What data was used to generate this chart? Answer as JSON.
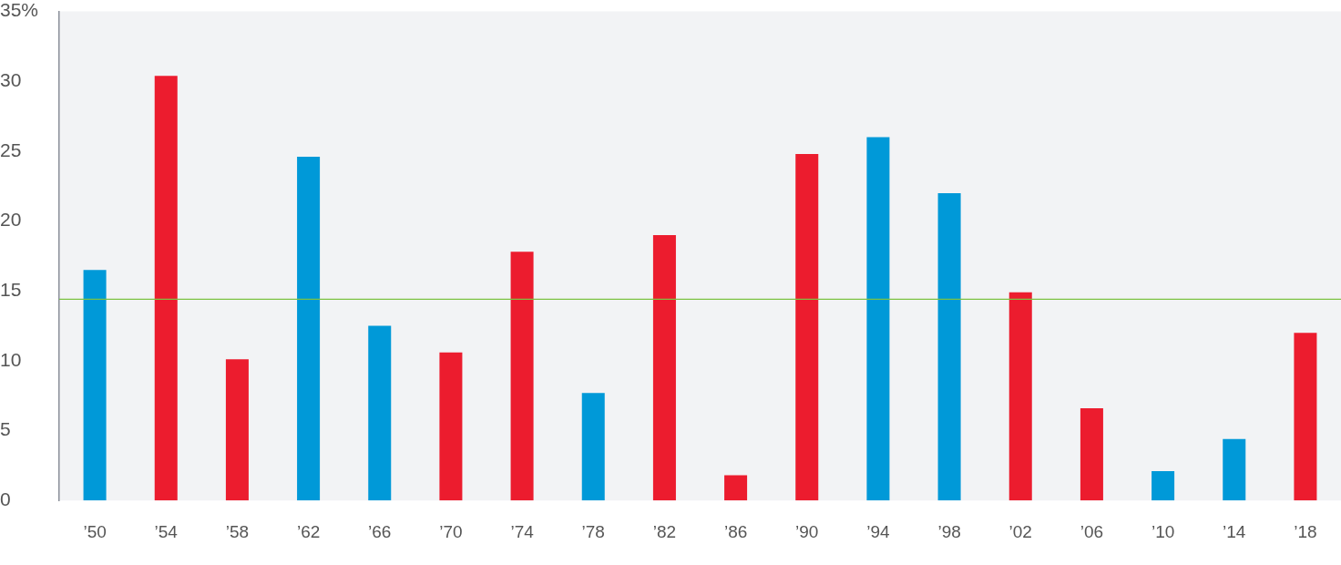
{
  "chart_data": {
    "type": "bar",
    "categories": [
      "’50",
      "’54",
      "’58",
      "’62",
      "’66",
      "’70",
      "’74",
      "’78",
      "’82",
      "’86",
      "’90",
      "’94",
      "’98",
      "’02",
      "’06",
      "’10",
      "’14",
      "’18"
    ],
    "values": [
      16.5,
      30.4,
      10.1,
      24.6,
      12.5,
      10.6,
      17.8,
      7.7,
      19.0,
      1.8,
      24.8,
      26.0,
      22.0,
      14.9,
      6.6,
      2.1,
      4.4,
      12.0
    ],
    "colors": [
      "#0099d8",
      "#ec1c2e",
      "#ec1c2e",
      "#0099d8",
      "#0099d8",
      "#ec1c2e",
      "#ec1c2e",
      "#0099d8",
      "#ec1c2e",
      "#ec1c2e",
      "#ec1c2e",
      "#0099d8",
      "#0099d8",
      "#ec1c2e",
      "#ec1c2e",
      "#0099d8",
      "#0099d8",
      "#ec1c2e"
    ],
    "ylim": [
      0,
      35
    ],
    "yticks": [
      0,
      5,
      10,
      15,
      20,
      25,
      30,
      {
        "value": 35,
        "label": "35%"
      }
    ],
    "ref_lines": [
      {
        "axis": "y",
        "value": 14.4,
        "color": "#7cc242"
      }
    ],
    "grid": false,
    "legend": false
  }
}
